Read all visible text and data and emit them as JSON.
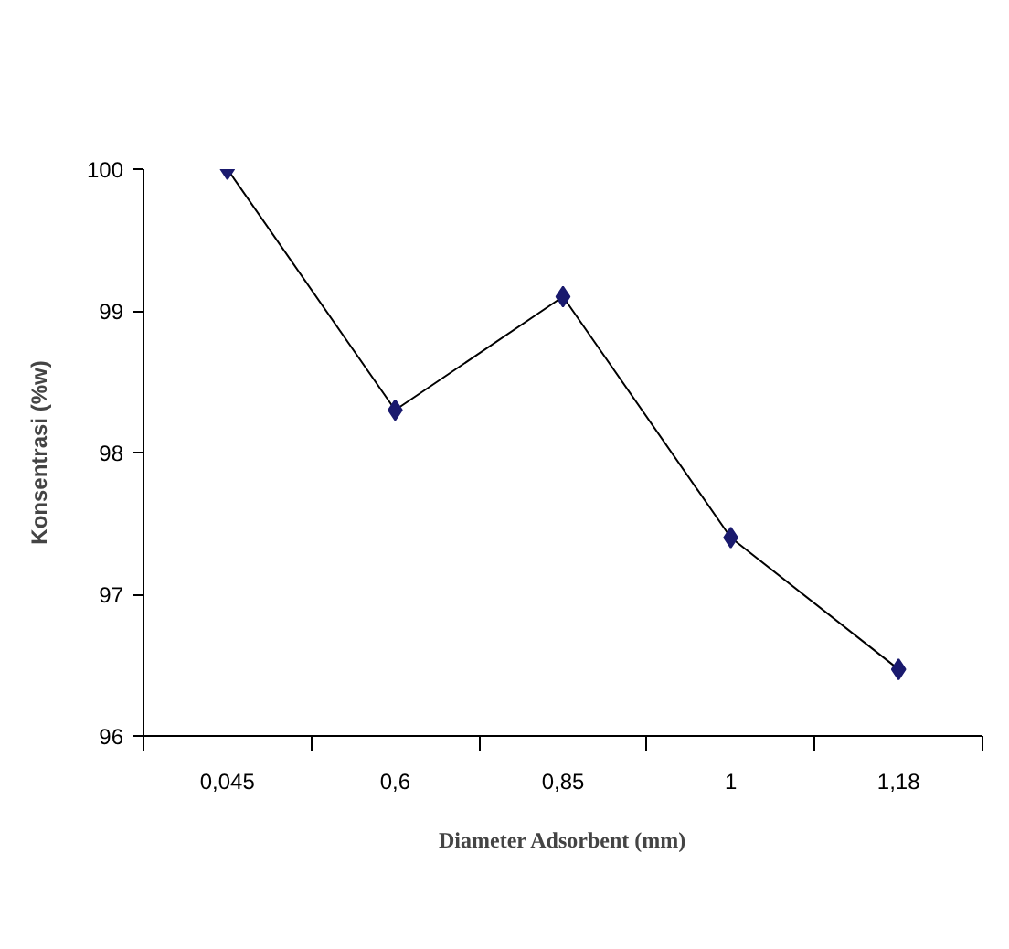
{
  "chart_data": {
    "type": "line",
    "xlabel": "Diameter Adsorbent (mm)",
    "ylabel": "Konsentrasi (%w)",
    "categories": [
      "0,045",
      "0,6",
      "0,85",
      "1",
      "1,18"
    ],
    "series": [
      {
        "color": "#1a1a6e",
        "values": [
          100,
          98.3,
          99.1,
          97.4,
          96.47
        ]
      }
    ],
    "ylim": [
      96,
      100
    ],
    "yticks": [
      96,
      97,
      98,
      99,
      100
    ],
    "grid": false,
    "marker": "diamond",
    "line_style": "solid"
  }
}
